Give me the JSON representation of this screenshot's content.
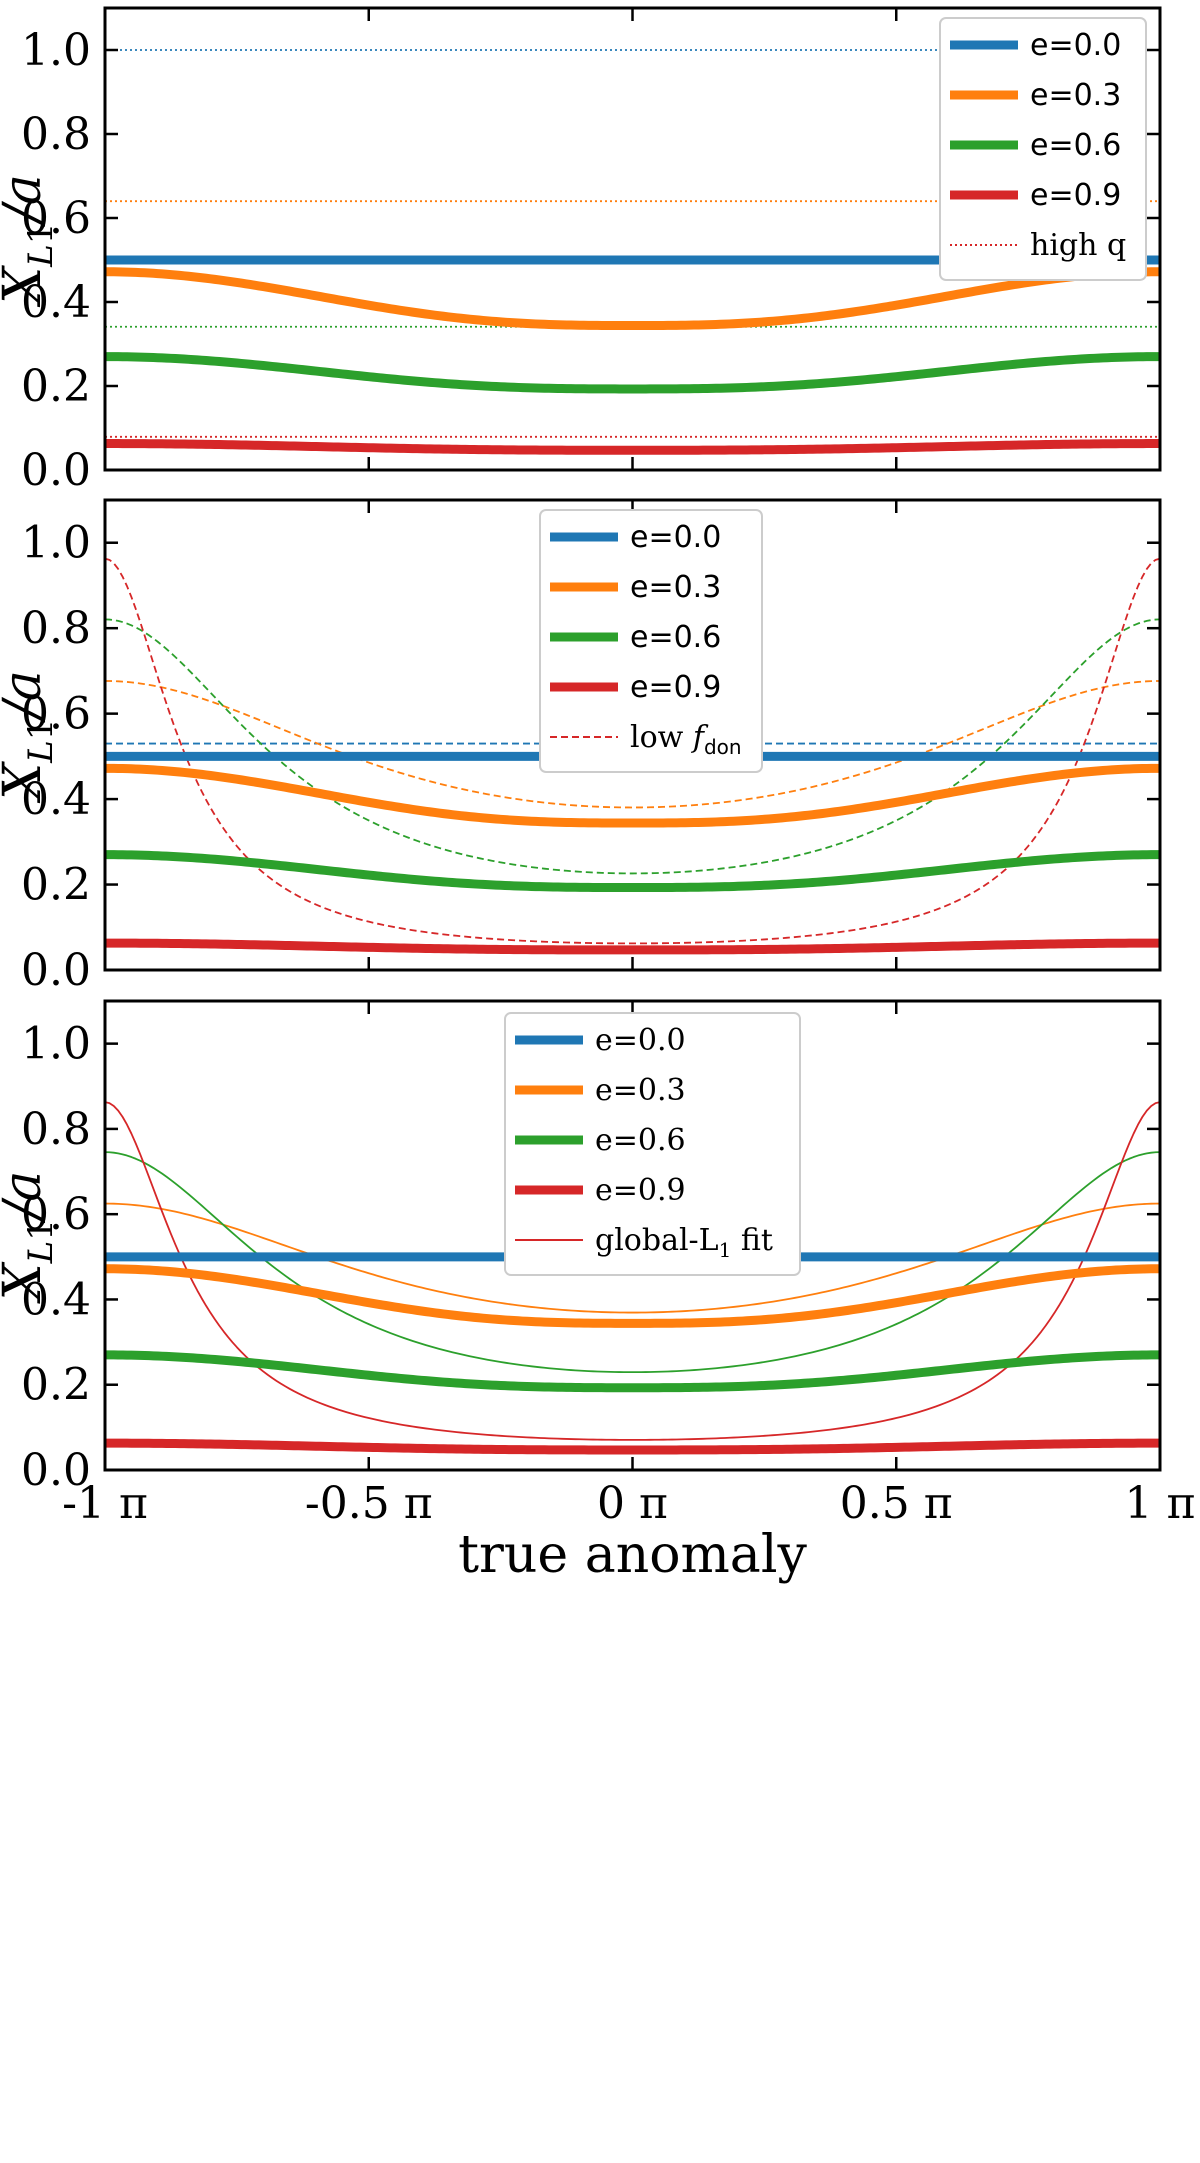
{
  "colors": {
    "e0": "#1f77b4",
    "e3": "#ff7f0e",
    "e6": "#2ca02c",
    "e9": "#d62728"
  },
  "xlabel": "true anomaly",
  "ylabel": "X_L1/a",
  "chart_data": [
    {
      "type": "line",
      "panel": "top",
      "title": "",
      "xlabel": "",
      "ylabel": "X_L1/a",
      "xlim": [
        -1,
        1
      ],
      "ylim": [
        0,
        1.1
      ],
      "yticks": [
        "0.0",
        "0.2",
        "0.4",
        "0.6",
        "0.8",
        "1.0"
      ],
      "legend_position": "top-right",
      "legend": [
        "e=0.0",
        "e=0.3",
        "e=0.6",
        "e=0.9",
        "high q"
      ],
      "series": [
        {
          "name": "e=0.0",
          "e": 0.0,
          "style": "solid-thick",
          "color_key": "e0",
          "edge": 0.5,
          "center": 0.5
        },
        {
          "name": "e=0.3",
          "e": 0.3,
          "style": "solid-thick",
          "color_key": "e3",
          "edge": 0.472,
          "center": 0.344
        },
        {
          "name": "e=0.6",
          "e": 0.6,
          "style": "solid-thick",
          "color_key": "e6",
          "edge": 0.27,
          "center": 0.193
        },
        {
          "name": "e=0.9",
          "e": 0.9,
          "style": "solid-thick",
          "color_key": "e9",
          "edge": 0.063,
          "center": 0.047
        },
        {
          "name": "high q (e=0.0)",
          "style": "dotted",
          "color_key": "e0",
          "constant": 1.0
        },
        {
          "name": "high q (e=0.3)",
          "style": "dotted",
          "color_key": "e3",
          "constant": 0.64
        },
        {
          "name": "high q (e=0.6)",
          "style": "dotted",
          "color_key": "e6",
          "constant": 0.341
        },
        {
          "name": "high q (e=0.9)",
          "style": "dotted",
          "color_key": "e9",
          "constant": 0.079
        }
      ]
    },
    {
      "type": "line",
      "panel": "middle",
      "title": "",
      "xlabel": "",
      "ylabel": "X_L1/a",
      "xlim": [
        -1,
        1
      ],
      "ylim": [
        0,
        1.1
      ],
      "yticks": [
        "0.0",
        "0.2",
        "0.4",
        "0.6",
        "0.8",
        "1.0"
      ],
      "legend_position": "top-center",
      "legend": [
        "e=0.0",
        "e=0.3",
        "e=0.6",
        "e=0.9",
        "low f_don"
      ],
      "series": [
        {
          "name": "e=0.0",
          "e": 0.0,
          "style": "solid-thick",
          "color_key": "e0",
          "edge": 0.5,
          "center": 0.5
        },
        {
          "name": "e=0.3",
          "e": 0.3,
          "style": "solid-thick",
          "color_key": "e3",
          "edge": 0.472,
          "center": 0.344
        },
        {
          "name": "e=0.6",
          "e": 0.6,
          "style": "solid-thick",
          "color_key": "e6",
          "edge": 0.27,
          "center": 0.193
        },
        {
          "name": "e=0.9",
          "e": 0.9,
          "style": "solid-thick",
          "color_key": "e9",
          "edge": 0.063,
          "center": 0.047
        },
        {
          "name": "low f_don (e=0.0)",
          "e": 0.0,
          "style": "dashed",
          "color_key": "e0",
          "base": 0.53
        },
        {
          "name": "low f_don (e=0.3)",
          "e": 0.3,
          "style": "dashed",
          "color_key": "e3",
          "base": 0.53
        },
        {
          "name": "low f_don (e=0.6)",
          "e": 0.6,
          "style": "dashed",
          "color_key": "e6",
          "base": 0.53
        },
        {
          "name": "low f_don (e=0.9)",
          "e": 0.9,
          "style": "dashed",
          "color_key": "e9",
          "base": 0.53
        }
      ]
    },
    {
      "type": "line",
      "panel": "bottom",
      "title": "",
      "xlabel": "true anomaly",
      "ylabel": "X_L1/a",
      "xlim": [
        -1,
        1
      ],
      "ylim": [
        0,
        1.1
      ],
      "xticks": [
        "-1 π",
        "-0.5 π",
        "0 π",
        "0.5 π",
        "1 π"
      ],
      "yticks": [
        "0.0",
        "0.2",
        "0.4",
        "0.6",
        "0.8",
        "1.0"
      ],
      "legend_position": "top-center",
      "legend": [
        "e=0.0",
        "e=0.3",
        "e=0.6",
        "e=0.9",
        "global-L1 fit"
      ],
      "series": [
        {
          "name": "e=0.0",
          "e": 0.0,
          "style": "solid-thick",
          "color_key": "e0",
          "edge": 0.5,
          "center": 0.5
        },
        {
          "name": "e=0.3",
          "e": 0.3,
          "style": "solid-thick",
          "color_key": "e3",
          "edge": 0.472,
          "center": 0.344
        },
        {
          "name": "e=0.6",
          "e": 0.6,
          "style": "solid-thick",
          "color_key": "e6",
          "edge": 0.27,
          "center": 0.193
        },
        {
          "name": "e=0.9",
          "e": 0.9,
          "style": "solid-thick",
          "color_key": "e9",
          "edge": 0.063,
          "center": 0.047
        },
        {
          "name": "global-L1 fit (e=0.0)",
          "e": 0.0,
          "style": "solid-thin",
          "color_key": "e0",
          "base": 0.5
        },
        {
          "name": "global-L1 fit (e=0.3)",
          "e": 0.3,
          "style": "solid-thin",
          "color_key": "e3",
          "base": 0.5
        },
        {
          "name": "global-L1 fit (e=0.6)",
          "e": 0.6,
          "style": "solid-thin",
          "color_key": "e6",
          "base": 0.5
        },
        {
          "name": "global-L1 fit (e=0.9)",
          "e": 0.9,
          "style": "solid-thin",
          "color_key": "e9",
          "base": 0.5
        }
      ]
    }
  ]
}
